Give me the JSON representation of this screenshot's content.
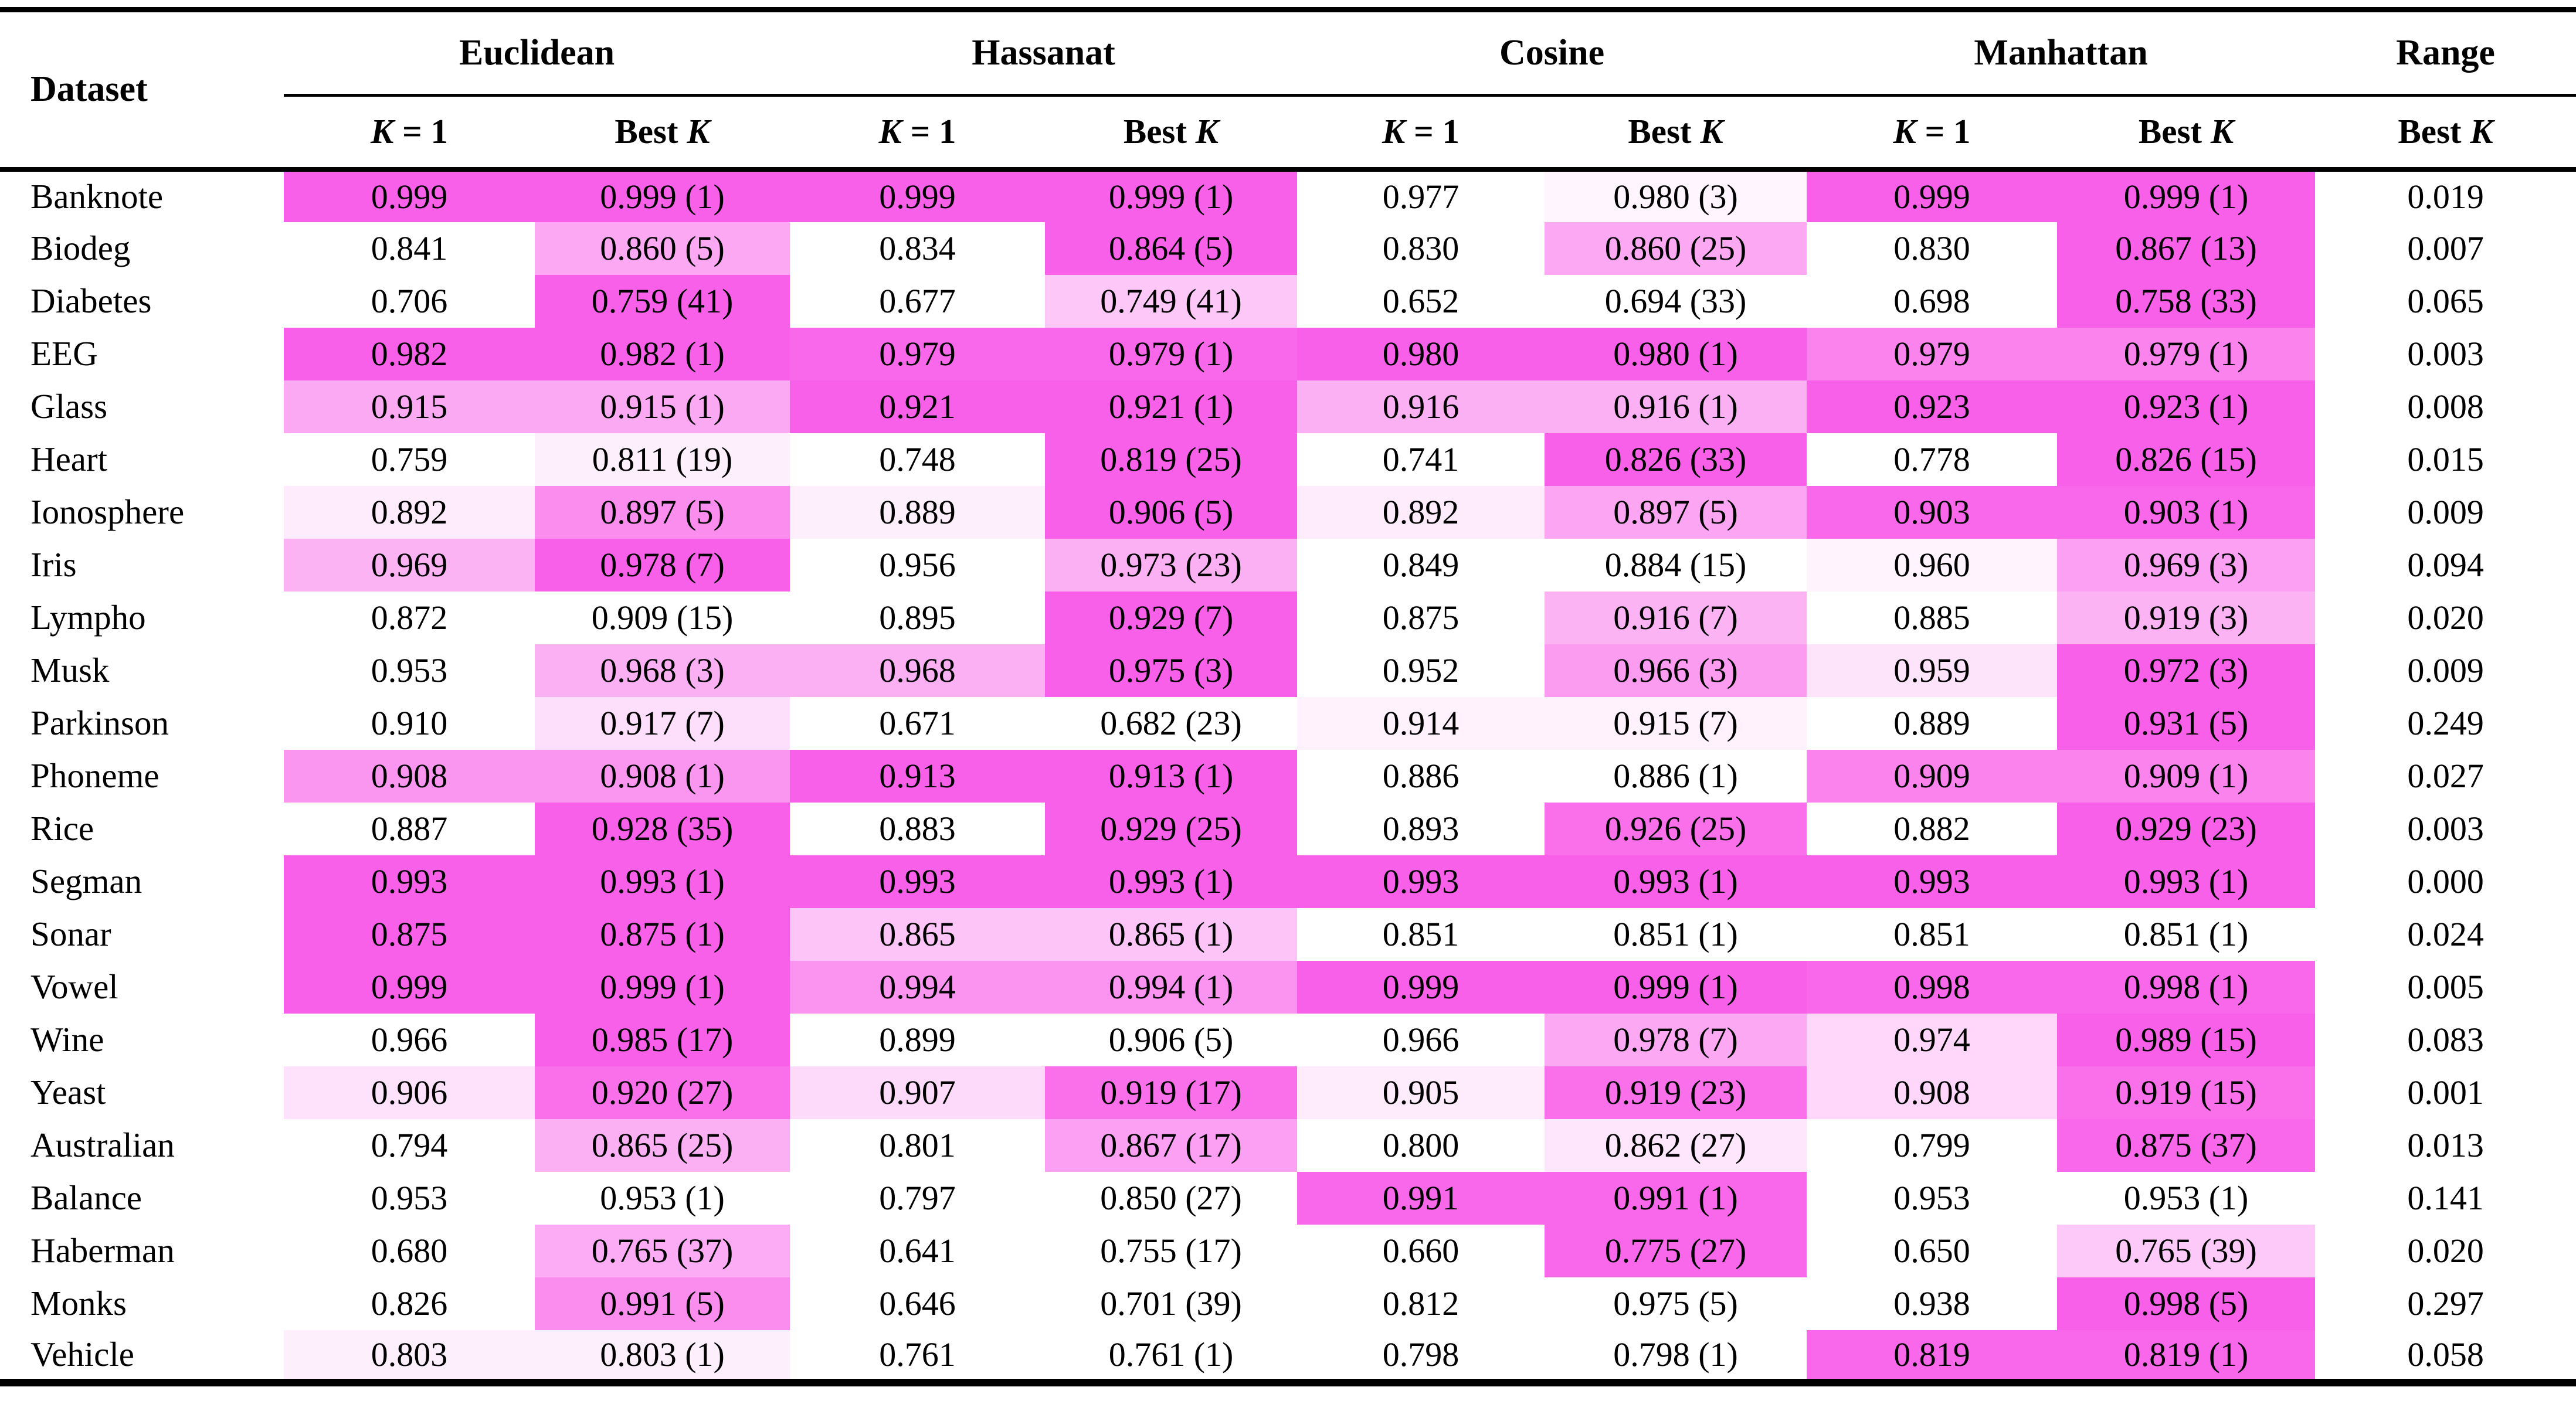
{
  "table": {
    "title_col": "Dataset",
    "heat_color": "#F960E9",
    "column_keys": [
      "euclidean-k1",
      "euclidean-bestk",
      "hassanat-k1",
      "hassanat-bestk",
      "cosine-k1",
      "cosine-bestk",
      "manhattan-k1",
      "manhattan-bestk",
      "range-bestk"
    ],
    "groups": [
      {
        "label": "Euclidean",
        "cols": [
          "K = 1",
          "Best K"
        ]
      },
      {
        "label": "Hassanat",
        "cols": [
          "K = 1",
          "Best K"
        ]
      },
      {
        "label": "Cosine",
        "cols": [
          "K = 1",
          "Best K"
        ]
      },
      {
        "label": "Manhattan",
        "cols": [
          "K = 1",
          "Best K"
        ]
      },
      {
        "label": "Range",
        "cols": [
          "Best K"
        ]
      }
    ],
    "rows": [
      {
        "dataset": "Banknote",
        "values": [
          "0.999",
          "0.999 (1)",
          "0.999",
          "0.999 (1)",
          "0.977",
          "0.980 (3)",
          "0.999",
          "0.999 (1)",
          "0.019"
        ],
        "shades": [
          1,
          1,
          1,
          1,
          0,
          0.06,
          1,
          1,
          0
        ]
      },
      {
        "dataset": "Biodeg",
        "values": [
          "0.841",
          "0.860 (5)",
          "0.834",
          "0.864 (5)",
          "0.830",
          "0.860 (25)",
          "0.830",
          "0.867 (13)",
          "0.007"
        ],
        "shades": [
          0,
          0.55,
          0,
          1,
          0,
          0.55,
          0,
          1,
          0
        ]
      },
      {
        "dataset": "Diabetes",
        "values": [
          "0.706",
          "0.759 (41)",
          "0.677",
          "0.749 (41)",
          "0.652",
          "0.694 (33)",
          "0.698",
          "0.758 (33)",
          "0.065"
        ],
        "shades": [
          0,
          1,
          0,
          0.35,
          0,
          0,
          0,
          1,
          0
        ]
      },
      {
        "dataset": "EEG",
        "values": [
          "0.982",
          "0.982 (1)",
          "0.979",
          "0.979 (1)",
          "0.980",
          "0.980 (1)",
          "0.979",
          "0.979 (1)",
          "0.003"
        ],
        "shades": [
          1,
          1,
          0.95,
          0.95,
          1,
          1,
          0.78,
          0.78,
          0
        ]
      },
      {
        "dataset": "Glass",
        "values": [
          "0.915",
          "0.915 (1)",
          "0.921",
          "0.921 (1)",
          "0.916",
          "0.916 (1)",
          "0.923",
          "0.923 (1)",
          "0.008"
        ],
        "shades": [
          0.54,
          0.54,
          1,
          1,
          0.5,
          0.5,
          1,
          1,
          0
        ]
      },
      {
        "dataset": "Heart",
        "values": [
          "0.759",
          "0.811 (19)",
          "0.748",
          "0.819 (25)",
          "0.741",
          "0.826 (33)",
          "0.778",
          "0.826 (15)",
          "0.015"
        ],
        "shades": [
          0,
          0.1,
          0,
          1,
          0,
          1,
          0,
          1,
          0
        ]
      },
      {
        "dataset": "Ionosphere",
        "values": [
          "0.892",
          "0.897 (5)",
          "0.889",
          "0.906 (5)",
          "0.892",
          "0.897 (5)",
          "0.903",
          "0.903 (1)",
          "0.009"
        ],
        "shades": [
          0.12,
          0.72,
          0.1,
          1,
          0.12,
          0.56,
          0.95,
          0.95,
          0
        ]
      },
      {
        "dataset": "Iris",
        "values": [
          "0.969",
          "0.978 (7)",
          "0.956",
          "0.973 (23)",
          "0.849",
          "0.884 (15)",
          "0.960",
          "0.969 (3)",
          "0.094"
        ],
        "shades": [
          0.48,
          1,
          0,
          0.5,
          0,
          0,
          0.07,
          0.6,
          0
        ]
      },
      {
        "dataset": "Lympho",
        "values": [
          "0.872",
          "0.909 (15)",
          "0.895",
          "0.929 (7)",
          "0.875",
          "0.916 (7)",
          "0.885",
          "0.919 (3)",
          "0.020"
        ],
        "shades": [
          0,
          0,
          0,
          1,
          0,
          0.48,
          0,
          0.48,
          0
        ]
      },
      {
        "dataset": "Musk",
        "values": [
          "0.953",
          "0.968 (3)",
          "0.968",
          "0.975 (3)",
          "0.952",
          "0.966 (3)",
          "0.959",
          "0.972 (3)",
          "0.009"
        ],
        "shades": [
          0,
          0.5,
          0.5,
          1,
          0,
          0.62,
          0.17,
          1,
          0
        ]
      },
      {
        "dataset": "Parkinson",
        "values": [
          "0.910",
          "0.917 (7)",
          "0.671",
          "0.682 (23)",
          "0.914",
          "0.915 (7)",
          "0.889",
          "0.931 (5)",
          "0.249"
        ],
        "shades": [
          0,
          0.2,
          0,
          0,
          0.08,
          0.08,
          0,
          1,
          0
        ]
      },
      {
        "dataset": "Phoneme",
        "values": [
          "0.908",
          "0.908 (1)",
          "0.913",
          "0.913 (1)",
          "0.886",
          "0.886 (1)",
          "0.909",
          "0.909 (1)",
          "0.027"
        ],
        "shades": [
          0.66,
          0.66,
          1,
          1,
          0,
          0,
          0.78,
          0.78,
          0
        ]
      },
      {
        "dataset": "Rice",
        "values": [
          "0.887",
          "0.928 (35)",
          "0.883",
          "0.929 (25)",
          "0.893",
          "0.926 (25)",
          "0.882",
          "0.929 (23)",
          "0.003"
        ],
        "shades": [
          0,
          1,
          0,
          1,
          0,
          0.9,
          0,
          1,
          0
        ]
      },
      {
        "dataset": "Segman",
        "values": [
          "0.993",
          "0.993 (1)",
          "0.993",
          "0.993 (1)",
          "0.993",
          "0.993 (1)",
          "0.993",
          "0.993 (1)",
          "0.000"
        ],
        "shades": [
          1,
          1,
          1,
          1,
          1,
          1,
          1,
          1,
          0
        ]
      },
      {
        "dataset": "Sonar",
        "values": [
          "0.875",
          "0.875 (1)",
          "0.865",
          "0.865 (1)",
          "0.851",
          "0.851 (1)",
          "0.851",
          "0.851 (1)",
          "0.024"
        ],
        "shades": [
          1,
          1,
          0.37,
          0.37,
          0,
          0,
          0,
          0,
          0
        ]
      },
      {
        "dataset": "Vowel",
        "values": [
          "0.999",
          "0.999 (1)",
          "0.994",
          "0.994 (1)",
          "0.999",
          "0.999 (1)",
          "0.998",
          "0.998 (1)",
          "0.005"
        ],
        "shades": [
          1,
          1,
          0.68,
          0.68,
          1,
          1,
          0.95,
          0.95,
          0
        ]
      },
      {
        "dataset": "Wine",
        "values": [
          "0.966",
          "0.985 (17)",
          "0.899",
          "0.906 (5)",
          "0.966",
          "0.978 (7)",
          "0.974",
          "0.989 (15)",
          "0.083"
        ],
        "shades": [
          0,
          1,
          0,
          0,
          0,
          0.55,
          0.25,
          1,
          0
        ]
      },
      {
        "dataset": "Yeast",
        "values": [
          "0.906",
          "0.920 (27)",
          "0.907",
          "0.919 (17)",
          "0.905",
          "0.919 (23)",
          "0.908",
          "0.919 (15)",
          "0.001"
        ],
        "shades": [
          0.18,
          0.9,
          0.23,
          0.9,
          0.12,
          0.9,
          0.25,
          0.9,
          0
        ]
      },
      {
        "dataset": "Australian",
        "values": [
          "0.794",
          "0.865 (25)",
          "0.801",
          "0.867 (17)",
          "0.800",
          "0.862 (27)",
          "0.799",
          "0.875 (37)",
          "0.013"
        ],
        "shades": [
          0,
          0.5,
          0,
          0.6,
          0,
          0.15,
          0,
          0.95,
          0
        ]
      },
      {
        "dataset": "Balance",
        "values": [
          "0.953",
          "0.953 (1)",
          "0.797",
          "0.850 (27)",
          "0.991",
          "0.991 (1)",
          "0.953",
          "0.953 (1)",
          "0.141"
        ],
        "shades": [
          0,
          0,
          0,
          0,
          0.95,
          0.95,
          0,
          0,
          0
        ]
      },
      {
        "dataset": "Haberman",
        "values": [
          "0.680",
          "0.765 (37)",
          "0.641",
          "0.755 (17)",
          "0.660",
          "0.775 (27)",
          "0.650",
          "0.765 (39)",
          "0.020"
        ],
        "shades": [
          0,
          0.52,
          0,
          0,
          0,
          0.95,
          0,
          0.34,
          0
        ]
      },
      {
        "dataset": "Monks",
        "values": [
          "0.826",
          "0.991 (5)",
          "0.646",
          "0.701 (39)",
          "0.812",
          "0.975 (5)",
          "0.938",
          "0.998 (5)",
          "0.297"
        ],
        "shades": [
          0,
          0.72,
          0,
          0,
          0,
          0,
          0,
          1,
          0
        ]
      },
      {
        "dataset": "Vehicle",
        "values": [
          "0.803",
          "0.803 (1)",
          "0.761",
          "0.761 (1)",
          "0.798",
          "0.798 (1)",
          "0.819",
          "0.819 (1)",
          "0.058"
        ],
        "shades": [
          0.1,
          0.1,
          0,
          0,
          0,
          0,
          0.95,
          0.95,
          0
        ]
      }
    ]
  }
}
